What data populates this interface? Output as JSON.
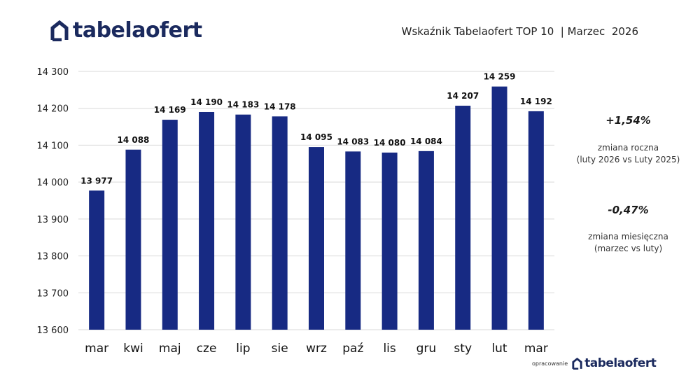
{
  "header": {
    "logo_part1": "tabela",
    "logo_part2": "ofert",
    "title": "Wskaźnik Tabelaofert TOP 10  | Marzec  2026"
  },
  "colors": {
    "brand": "#1b2a5e",
    "bar": "#172a83",
    "grid": "#d9d9d9"
  },
  "chart_data": {
    "type": "bar",
    "categories": [
      "mar",
      "kwi",
      "maj",
      "cze",
      "lip",
      "sie",
      "wrz",
      "paź",
      "lis",
      "gru",
      "sty",
      "lut",
      "mar"
    ],
    "values": [
      13977,
      14088,
      14169,
      14190,
      14183,
      14178,
      14095,
      14083,
      14080,
      14084,
      14207,
      14259,
      14192
    ],
    "value_labels": [
      "13 977",
      "14 088",
      "14 169",
      "14 190",
      "14 183",
      "14 178",
      "14 095",
      "14 083",
      "14 080",
      "14 084",
      "14 207",
      "14 259",
      "14 192"
    ],
    "ylim": [
      13600,
      14300
    ],
    "yticks": [
      13600,
      13700,
      13800,
      13900,
      14000,
      14100,
      14200,
      14300
    ],
    "ytick_labels": [
      "13 600",
      "13 700",
      "13 800",
      "13 900",
      "14 000",
      "14 100",
      "14 200",
      "14 300"
    ],
    "grid": true,
    "title": "",
    "xlabel": "",
    "ylabel": ""
  },
  "stats": {
    "annual_value": "+1,54%",
    "annual_label_line1": "zmiana roczna",
    "annual_label_line2": "(luty 2026 vs Luty 2025)",
    "monthly_value": "-0,47%",
    "monthly_label_line1": "zmiana miesięczna",
    "monthly_label_line2": "(marzec vs luty)"
  },
  "footer": {
    "prefix": "opracowanie",
    "logo_part1": "tabela",
    "logo_part2": "ofert"
  }
}
